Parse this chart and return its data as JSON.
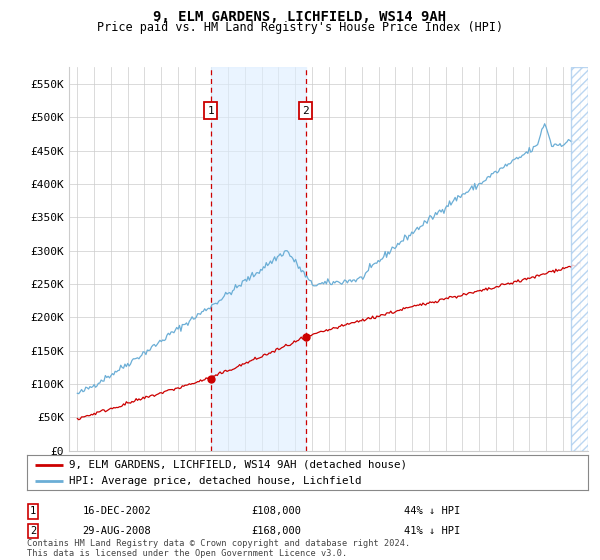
{
  "title": "9, ELM GARDENS, LICHFIELD, WS14 9AH",
  "subtitle": "Price paid vs. HM Land Registry's House Price Index (HPI)",
  "legend_line1": "9, ELM GARDENS, LICHFIELD, WS14 9AH (detached house)",
  "legend_line2": "HPI: Average price, detached house, Lichfield",
  "footnote": "Contains HM Land Registry data © Crown copyright and database right 2024.\nThis data is licensed under the Open Government Licence v3.0.",
  "sale1_date": "16-DEC-2002",
  "sale1_price": "£108,000",
  "sale1_hpi": "44% ↓ HPI",
  "sale1_year": 2002.96,
  "sale1_value": 108000,
  "sale2_date": "29-AUG-2008",
  "sale2_price": "£168,000",
  "sale2_hpi": "41% ↓ HPI",
  "sale2_year": 2008.65,
  "sale2_value": 168000,
  "hpi_color": "#6baed6",
  "price_color": "#cc0000",
  "vline_color": "#cc0000",
  "shade_color": "#ddeeff",
  "grid_color": "#cccccc",
  "bg_color": "#ffffff",
  "ylim_min": 0,
  "ylim_max": 575000,
  "xlim_min": 1994.5,
  "xlim_max": 2025.5,
  "yticks": [
    0,
    50000,
    100000,
    150000,
    200000,
    250000,
    300000,
    350000,
    400000,
    450000,
    500000,
    550000
  ],
  "ytick_labels": [
    "£0",
    "£50K",
    "£100K",
    "£150K",
    "£200K",
    "£250K",
    "£300K",
    "£350K",
    "£400K",
    "£450K",
    "£500K",
    "£550K"
  ],
  "xticks": [
    1995,
    1996,
    1997,
    1998,
    1999,
    2000,
    2001,
    2002,
    2003,
    2004,
    2005,
    2006,
    2007,
    2008,
    2009,
    2010,
    2011,
    2012,
    2013,
    2014,
    2015,
    2016,
    2017,
    2018,
    2019,
    2020,
    2021,
    2022,
    2023,
    2024,
    2025
  ],
  "hatch_start": 2024.5,
  "hatch_end": 2025.5
}
